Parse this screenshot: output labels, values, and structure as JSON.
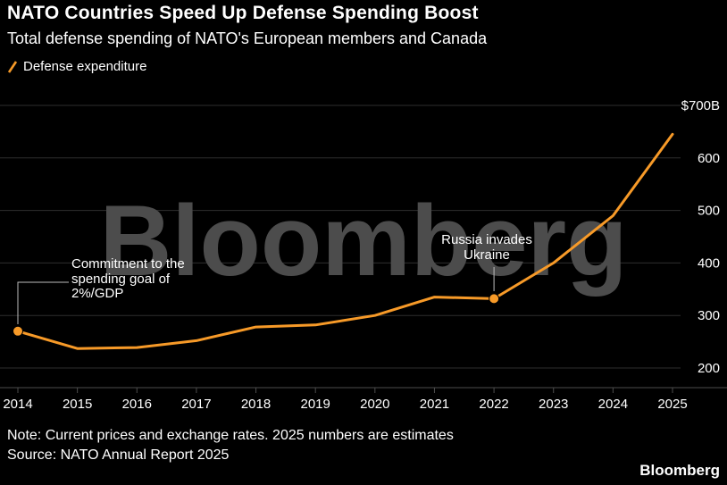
{
  "header": {
    "title": "NATO Countries Speed Up Defense Spending Boost",
    "subtitle": "Total defense spending of NATO's European members and Canada"
  },
  "legend": {
    "label": "Defense expenditure",
    "color": "#f79a28"
  },
  "watermark": "Bloomberg",
  "annotations": {
    "commitment": "Commitment to the\nspending goal of\n2%/GDP",
    "russia": "Russia invades\nUkraine"
  },
  "footer": {
    "note": "Note: Current prices and exchange rates. 2025 numbers are estimates",
    "source": "Source: NATO Annual Report 2025",
    "logo": "Bloomberg"
  },
  "chart_data": {
    "type": "line",
    "title": "NATO Countries Speed Up Defense Spending Boost",
    "xlabel": "",
    "ylabel": "Defense expenditure ($B)",
    "x": [
      2014,
      2015,
      2016,
      2017,
      2018,
      2019,
      2020,
      2021,
      2022,
      2023,
      2024,
      2025
    ],
    "x_tick_labels": [
      "2014",
      "2015",
      "2016",
      "2017",
      "2018",
      "2019",
      "2020",
      "2021",
      "2022",
      "2023",
      "2024",
      "2025"
    ],
    "series": [
      {
        "name": "Defense expenditure",
        "values": [
          270,
          237,
          239,
          252,
          278,
          282,
          300,
          335,
          332,
          400,
          490,
          645
        ]
      }
    ],
    "ylim": [
      200,
      700
    ],
    "y_ticks": [
      200,
      300,
      400,
      500,
      600,
      700
    ],
    "y_tick_labels": [
      "200",
      "300",
      "400",
      "500",
      "600",
      "$700B"
    ],
    "grid": true,
    "legend_position": "top-left",
    "line_color": "#f79a28",
    "markers": [
      {
        "x": 2014,
        "annotation": "commitment"
      },
      {
        "x": 2022,
        "annotation": "russia"
      }
    ]
  }
}
